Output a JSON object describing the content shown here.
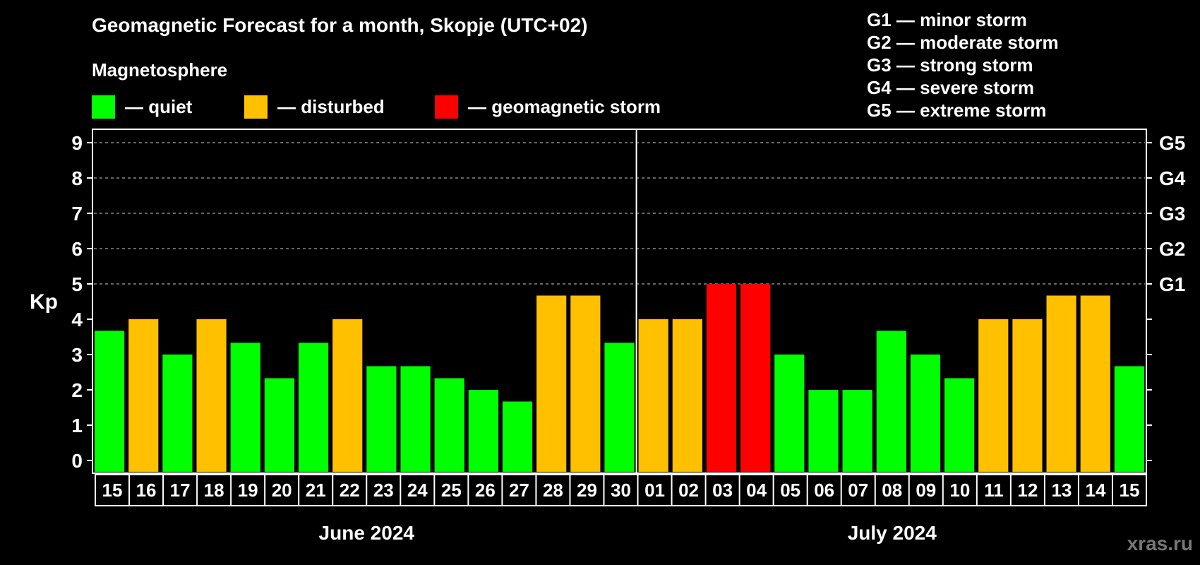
{
  "header": {
    "title": "Geomagnetic Forecast for a month, Skopje (UTC+02)",
    "subtitle": "Magnetosphere"
  },
  "legend": [
    {
      "label": "— quiet",
      "color": "#00ff00"
    },
    {
      "label": "— disturbed",
      "color": "#ffc000"
    },
    {
      "label": "— geomagnetic storm",
      "color": "#ff0000"
    }
  ],
  "storm_scale": [
    "G1 — minor storm",
    "G2 — moderate storm",
    "G3 — strong storm",
    "G4 — severe storm",
    "G5 — extreme storm"
  ],
  "watermark": "xras.ru",
  "chart_data": {
    "type": "bar",
    "ylabel": "Kp",
    "ylim": [
      0,
      9
    ],
    "yticks": [
      "0",
      "1",
      "2",
      "3",
      "4",
      "5",
      "6",
      "7",
      "8",
      "9"
    ],
    "right_ticks": [
      {
        "value": 5,
        "label": "G1"
      },
      {
        "value": 6,
        "label": "G2"
      },
      {
        "value": 7,
        "label": "G3"
      },
      {
        "value": 8,
        "label": "G4"
      },
      {
        "value": 9,
        "label": "G5"
      }
    ],
    "grid": "dashed horizontal at 5–9",
    "months": [
      {
        "label": "June 2024",
        "days": 16
      },
      {
        "label": "July 2024",
        "days": 15
      }
    ],
    "categories": [
      "15",
      "16",
      "17",
      "18",
      "19",
      "20",
      "21",
      "22",
      "23",
      "24",
      "25",
      "26",
      "27",
      "28",
      "29",
      "30",
      "01",
      "02",
      "03",
      "04",
      "05",
      "06",
      "07",
      "08",
      "09",
      "10",
      "11",
      "12",
      "13",
      "14",
      "15"
    ],
    "values": [
      3.67,
      4,
      3,
      4,
      3.33,
      2.33,
      3.33,
      4,
      2.67,
      2.67,
      2.33,
      2,
      1.67,
      4.67,
      4.67,
      3.33,
      4,
      4,
      5,
      5,
      3,
      2,
      2,
      3.67,
      3,
      2.33,
      4,
      4,
      4.67,
      4.67,
      2.67
    ],
    "status": [
      "quiet",
      "disturbed",
      "quiet",
      "disturbed",
      "quiet",
      "quiet",
      "quiet",
      "disturbed",
      "quiet",
      "quiet",
      "quiet",
      "quiet",
      "quiet",
      "disturbed",
      "disturbed",
      "quiet",
      "disturbed",
      "disturbed",
      "storm",
      "storm",
      "quiet",
      "quiet",
      "quiet",
      "quiet",
      "quiet",
      "quiet",
      "disturbed",
      "disturbed",
      "disturbed",
      "disturbed",
      "quiet"
    ],
    "colors": {
      "quiet": "#00ff00",
      "disturbed": "#ffc000",
      "storm": "#ff0000"
    }
  }
}
